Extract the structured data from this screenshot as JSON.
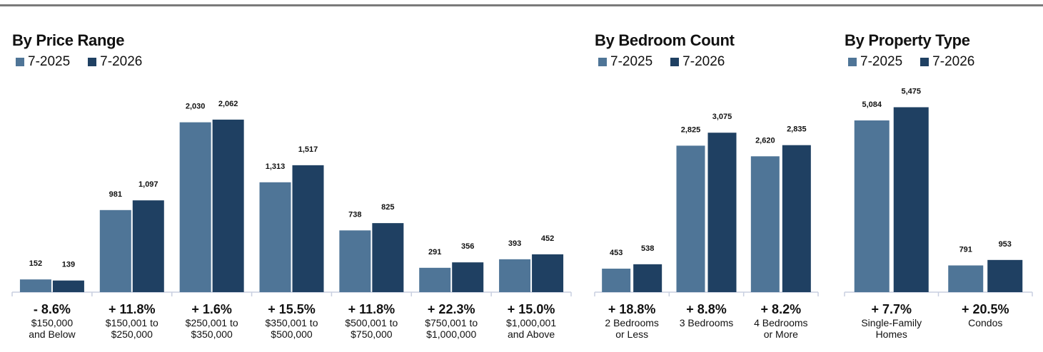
{
  "colors": {
    "y2025": "#4f7597",
    "y2026": "#1f4062",
    "axis": "#c8cfe0"
  },
  "legend": {
    "y2025": "7-2025",
    "y2026": "7-2026"
  },
  "chart_data": [
    {
      "type": "bar",
      "title": "By Price Range",
      "categories": [
        [
          "$150,000",
          "and Below"
        ],
        [
          "$150,001 to",
          "$250,000"
        ],
        [
          "$250,001 to",
          "$350,000"
        ],
        [
          "$350,001 to",
          "$500,000"
        ],
        [
          "$500,001 to",
          "$750,000"
        ],
        [
          "$750,001 to",
          "$1,000,000"
        ],
        [
          "$1,000,001",
          "and Above"
        ]
      ],
      "series": [
        {
          "name": "7-2025",
          "values": [
            152,
            981,
            2030,
            1313,
            738,
            291,
            393
          ],
          "labels": [
            "152",
            "981",
            "2,030",
            "1,313",
            "738",
            "291",
            "393"
          ]
        },
        {
          "name": "7-2026",
          "values": [
            139,
            1097,
            2062,
            1517,
            825,
            356,
            452
          ],
          "labels": [
            "139",
            "1,097",
            "2,062",
            "1,517",
            "825",
            "356",
            "452"
          ]
        }
      ],
      "changes": [
        "- 8.6%",
        "+ 11.8%",
        "+ 1.6%",
        "+ 15.5%",
        "+ 11.8%",
        "+ 22.3%",
        "+ 15.0%"
      ],
      "ylim": [
        0,
        2640
      ]
    },
    {
      "type": "bar",
      "title": "By Bedroom Count",
      "categories": [
        [
          "2 Bedrooms",
          "or Less"
        ],
        [
          "3 Bedrooms"
        ],
        [
          "4 Bedrooms",
          "or More"
        ]
      ],
      "series": [
        {
          "name": "7-2025",
          "values": [
            453,
            2825,
            2620
          ],
          "labels": [
            "453",
            "2,825",
            "2,620"
          ]
        },
        {
          "name": "7-2026",
          "values": [
            538,
            3075,
            2835
          ],
          "labels": [
            "538",
            "3,075",
            "2,835"
          ]
        }
      ],
      "changes": [
        "+ 18.8%",
        "+ 8.8%",
        "+ 8.2%"
      ],
      "ylim": [
        0,
        4260
      ]
    },
    {
      "type": "bar",
      "title": "By Property Type",
      "categories": [
        [
          "Single-Family",
          "Homes"
        ],
        [
          "Condos"
        ]
      ],
      "series": [
        {
          "name": "7-2025",
          "values": [
            5084,
            791
          ],
          "labels": [
            "5,084",
            "791"
          ]
        },
        {
          "name": "7-2026",
          "values": [
            5475,
            953
          ],
          "labels": [
            "5,475",
            "953"
          ]
        }
      ],
      "changes": [
        "+ 7.7%",
        "+ 20.5%"
      ],
      "ylim": [
        0,
        6540
      ]
    }
  ]
}
